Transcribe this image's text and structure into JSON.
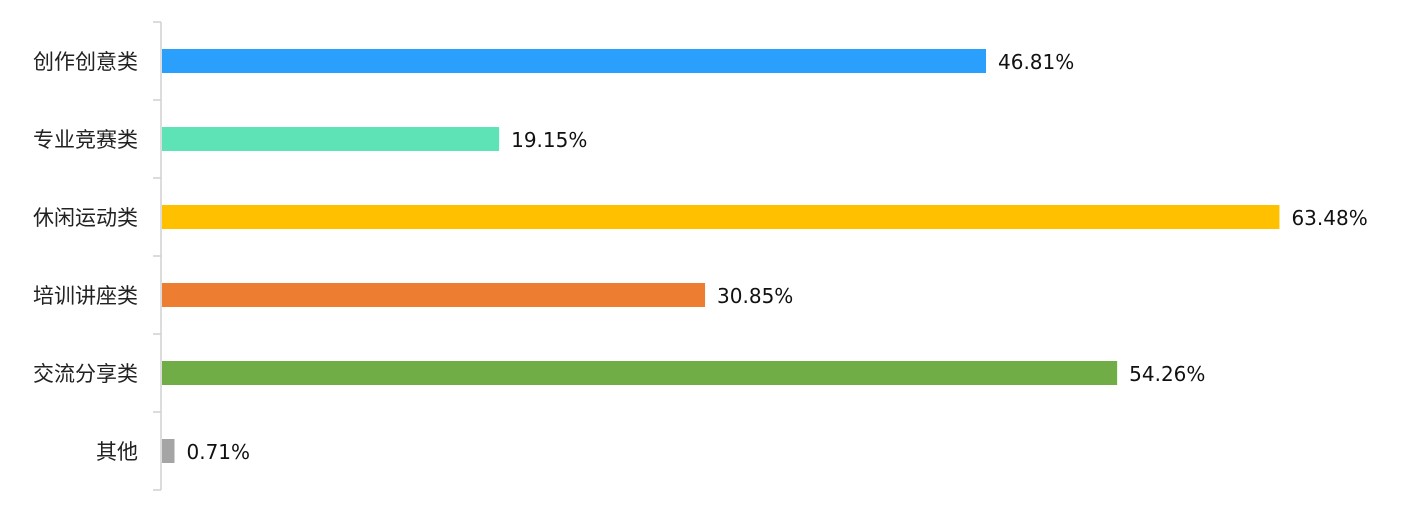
{
  "chart_data": {
    "type": "bar",
    "orientation": "horizontal",
    "categories": [
      "创作创意类",
      "专业竞赛类",
      "休闲运动类",
      "培训讲座类",
      "交流分享类",
      "其他"
    ],
    "values": [
      46.81,
      19.15,
      63.48,
      30.85,
      54.26,
      0.71
    ],
    "labels": [
      "46.81%",
      "19.15%",
      "63.48%",
      "30.85%",
      "54.26%",
      "0.71%"
    ],
    "colors": [
      "#2A9FFC",
      "#5DE3B6",
      "#FFC000",
      "#ED7D31",
      "#70AD47",
      "#A5A5A5"
    ],
    "unit": "%",
    "title": "",
    "xlabel": "",
    "ylabel": "",
    "xlim": [
      0,
      70
    ],
    "grid": false,
    "legend": "none"
  }
}
